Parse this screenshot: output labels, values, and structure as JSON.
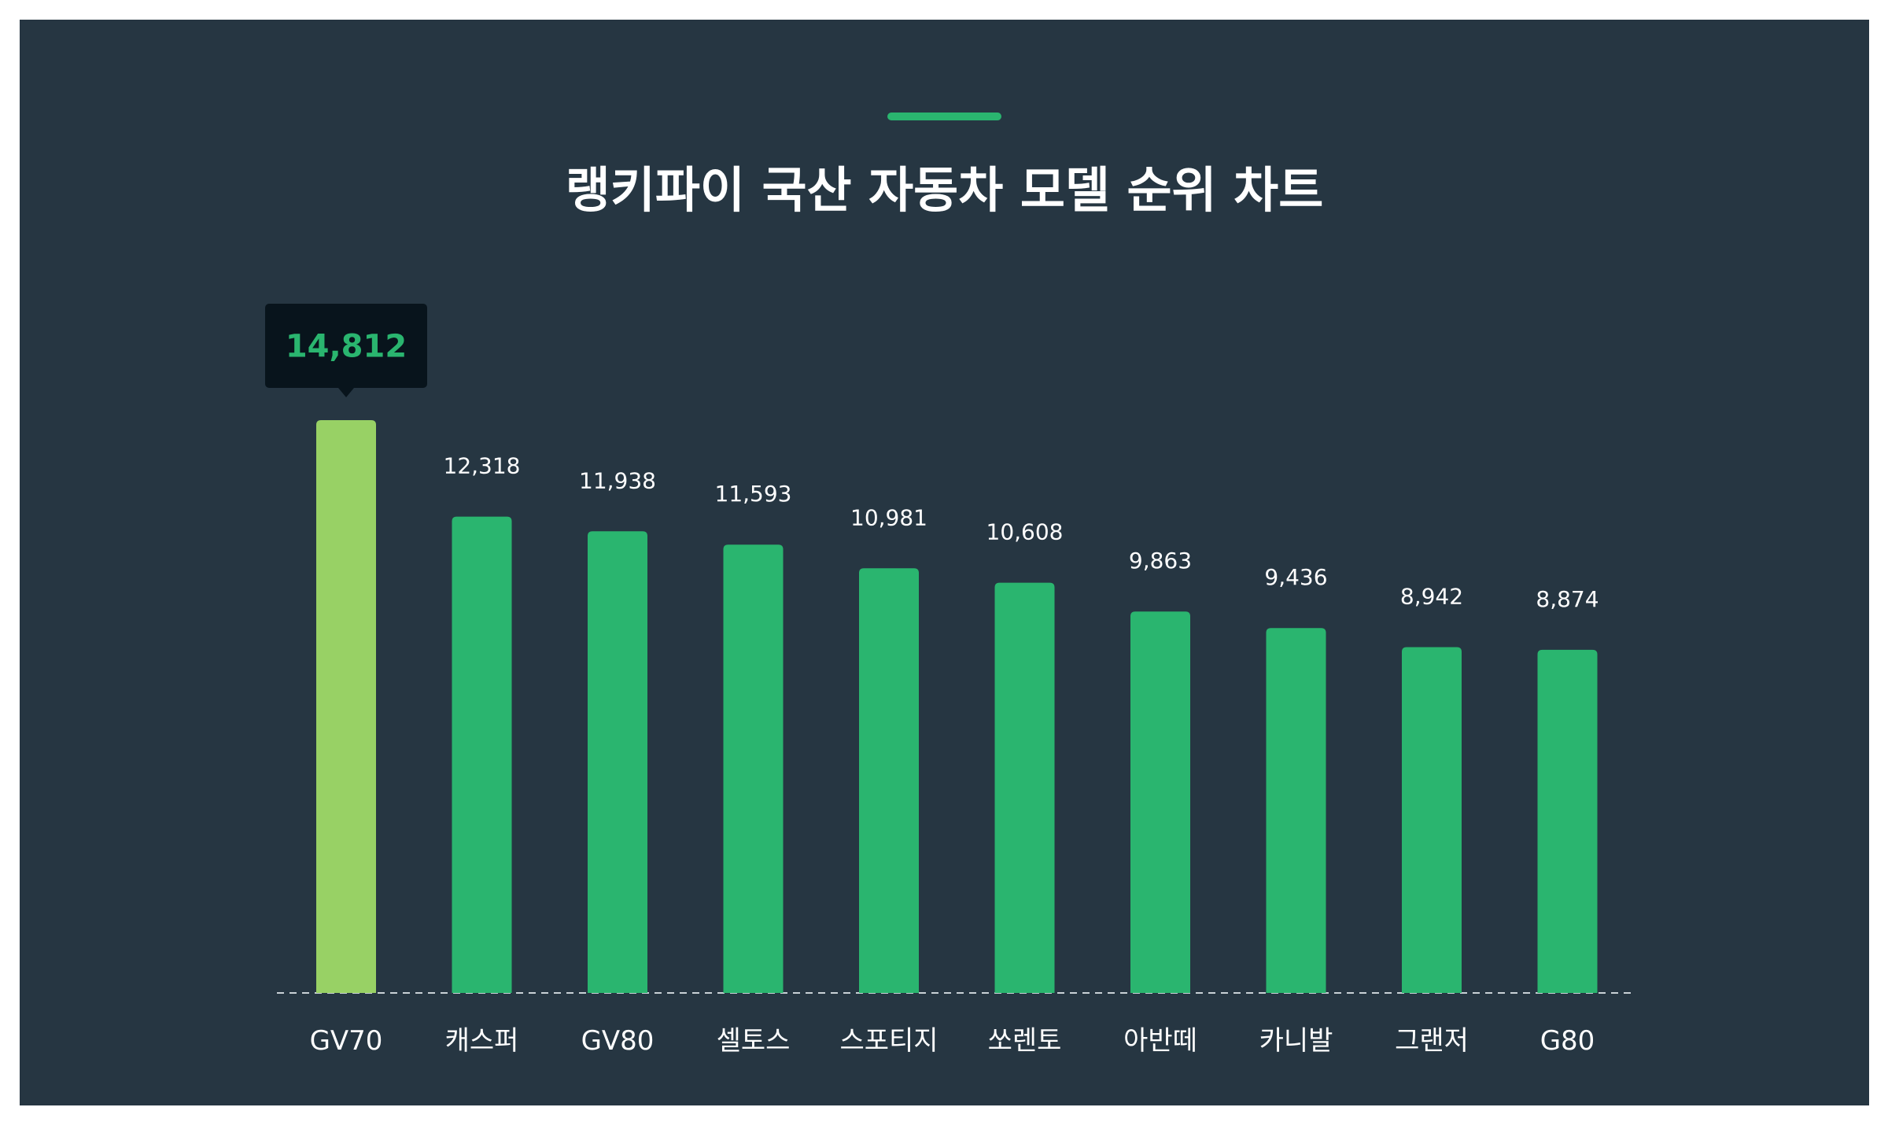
{
  "title": "랭키파이 국산 자동차 모델 순위 차트",
  "colors": {
    "background": "#263642",
    "bar": "#2ab56f",
    "highlight_bar": "#98d165",
    "tooltip_bg": "#08141c",
    "tooltip_text": "#2ab56f",
    "baseline": "#c9d1d6"
  },
  "chart_data": {
    "type": "bar",
    "title": "랭키파이 국산 자동차 모델 순위 차트",
    "categories": [
      "GV70",
      "캐스퍼",
      "GV80",
      "셀토스",
      "스포티지",
      "쏘렌토",
      "아반떼",
      "카니발",
      "그랜저",
      "G80"
    ],
    "values": [
      14812,
      12318,
      11938,
      11593,
      10981,
      10608,
      9863,
      9436,
      8942,
      8874
    ],
    "value_labels": [
      "14,812",
      "12,318",
      "11,938",
      "11,593",
      "10,981",
      "10,608",
      "9,863",
      "9,436",
      "8,942",
      "8,874"
    ],
    "highlight_index": 0,
    "xlabel": "",
    "ylabel": "",
    "ylim": [
      0,
      14812
    ],
    "grid": false,
    "legend": "none"
  }
}
